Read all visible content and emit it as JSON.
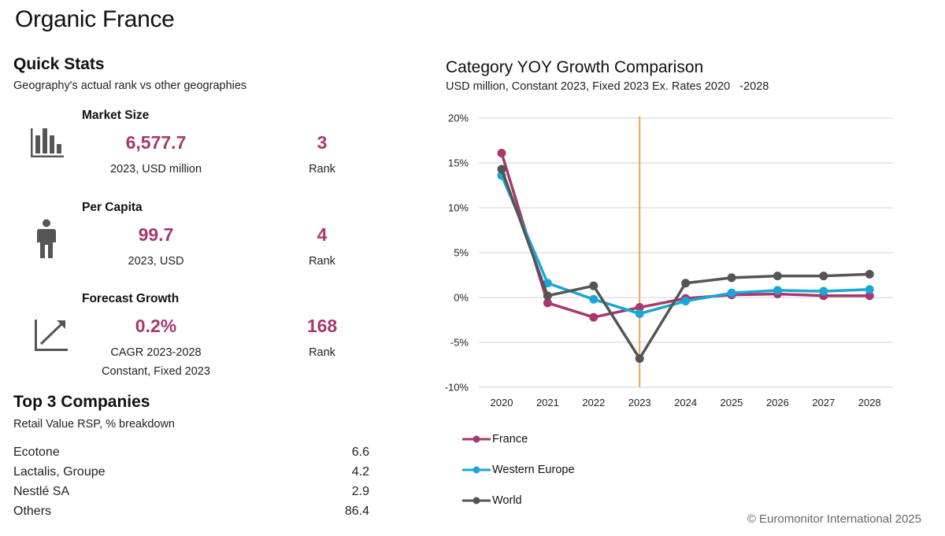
{
  "page": {
    "title": "Organic France"
  },
  "quick_stats": {
    "heading": "Quick Stats",
    "subtitle": "Geography's actual rank vs other geographies",
    "items": [
      {
        "icon": "bar-chart-icon",
        "label": "Market Size",
        "value": "6,577.7",
        "caption": "2023, USD million",
        "caption2": "",
        "rank": "3",
        "rank_label": "Rank"
      },
      {
        "icon": "person-icon",
        "label": "Per Capita",
        "value": "99.7",
        "caption": "2023,  USD",
        "caption2": "",
        "rank": "4",
        "rank_label": "Rank"
      },
      {
        "icon": "trend-up-icon",
        "label": "Forecast Growth",
        "value": "0.2%",
        "caption": "CAGR 2023-2028",
        "caption2": "Constant, Fixed 2023",
        "rank": "168",
        "rank_label": "Rank"
      }
    ]
  },
  "companies": {
    "heading": "Top 3 Companies",
    "subtitle": "Retail Value RSP, % breakdown",
    "rows": [
      {
        "name": "Ecotone",
        "value": "6.6"
      },
      {
        "name": "Lactalis, Groupe",
        "value": "4.2"
      },
      {
        "name": "Nestlé SA",
        "value": "2.9"
      },
      {
        "name": "Others",
        "value": "86.4"
      }
    ]
  },
  "colors": {
    "accent": "#a8386e",
    "france": "#a8386e",
    "western_europe": "#1aa6d6",
    "world": "#555555",
    "marker_line": "#f0a050"
  },
  "chart_data": {
    "type": "line",
    "title": "Category YOY Growth Comparison",
    "subtitle": "USD million, Constant 2023, Fixed 2023 Ex. Rates 2020   -2028",
    "xlabel": "",
    "ylabel": "",
    "categories": [
      "2020",
      "2021",
      "2022",
      "2023",
      "2024",
      "2025",
      "2026",
      "2027",
      "2028"
    ],
    "ylim": [
      -10,
      20
    ],
    "yticks": [
      -10,
      -5,
      0,
      5,
      10,
      15,
      20
    ],
    "ytick_labels": [
      "-10%",
      "-5%",
      "0%",
      "5%",
      "10%",
      "15%",
      "20%"
    ],
    "grid": true,
    "vertical_marker": "2023",
    "legend_position": "bottom-left",
    "series": [
      {
        "name": "France",
        "color": "#a8386e",
        "values": [
          16.1,
          -0.6,
          -2.2,
          -1.1,
          -0.1,
          0.3,
          0.4,
          0.2,
          0.2
        ]
      },
      {
        "name": "Western Europe",
        "color": "#1aa6d6",
        "values": [
          13.6,
          1.6,
          -0.2,
          -1.8,
          -0.4,
          0.5,
          0.8,
          0.7,
          0.9
        ]
      },
      {
        "name": "World",
        "color": "#555555",
        "values": [
          14.3,
          0.2,
          1.3,
          -6.8,
          1.6,
          2.2,
          2.4,
          2.4,
          2.6
        ]
      }
    ]
  },
  "footer": {
    "copyright": "© Euromonitor International 2025"
  }
}
